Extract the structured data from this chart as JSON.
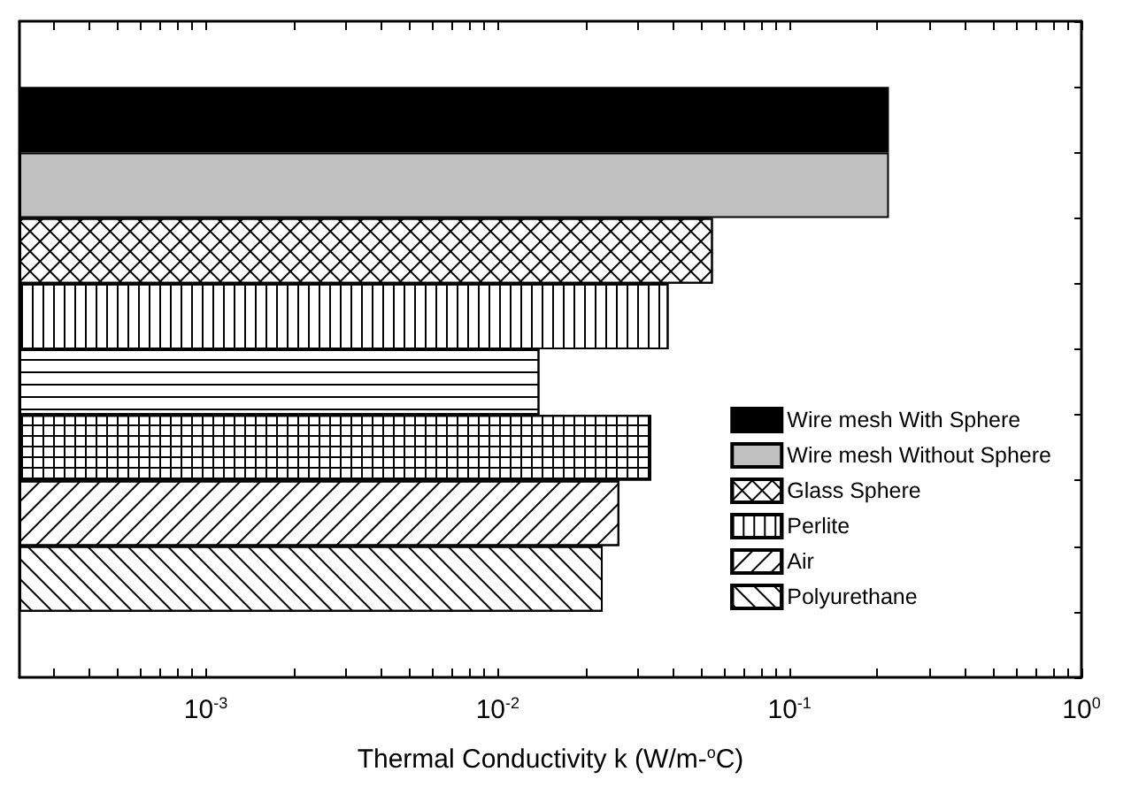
{
  "chart_data": {
    "type": "bar",
    "orientation": "horizontal",
    "xlabel": "Thermal Conductivity k (W/m-$^{o}$C)",
    "log": "x",
    "xlim": [
      0.00023,
      1
    ],
    "xticks": [
      {
        "value": 0.0003,
        "label": null
      },
      {
        "value": 0.0004,
        "label": null
      },
      {
        "value": 0.0005,
        "label": null
      },
      {
        "value": 0.0006,
        "label": null
      },
      {
        "value": 0.0007,
        "label": null
      },
      {
        "value": 0.0008,
        "label": null
      },
      {
        "value": 0.0009,
        "label": null
      },
      {
        "value": 0.001,
        "label": "10$^{-3}$"
      },
      {
        "value": 0.002,
        "label": null
      },
      {
        "value": 0.003,
        "label": null
      },
      {
        "value": 0.004,
        "label": null
      },
      {
        "value": 0.005,
        "label": null
      },
      {
        "value": 0.006,
        "label": null
      },
      {
        "value": 0.007,
        "label": null
      },
      {
        "value": 0.008,
        "label": null
      },
      {
        "value": 0.009,
        "label": null
      },
      {
        "value": 0.01,
        "label": "10$^{-2}$"
      },
      {
        "value": 0.02,
        "label": null
      },
      {
        "value": 0.03,
        "label": null
      },
      {
        "value": 0.04,
        "label": null
      },
      {
        "value": 0.05,
        "label": null
      },
      {
        "value": 0.06,
        "label": null
      },
      {
        "value": 0.07,
        "label": null
      },
      {
        "value": 0.08,
        "label": null
      },
      {
        "value": 0.09,
        "label": null
      },
      {
        "value": 0.1,
        "label": "10$^{-1}$"
      },
      {
        "value": 0.2,
        "label": null
      },
      {
        "value": 0.3,
        "label": null
      },
      {
        "value": 0.4,
        "label": null
      },
      {
        "value": 0.5,
        "label": null
      },
      {
        "value": 0.6,
        "label": null
      },
      {
        "value": 0.7,
        "label": null
      },
      {
        "value": 0.8,
        "label": null
      },
      {
        "value": 0.9,
        "label": null
      },
      {
        "value": 1,
        "label": "10$^{0}$"
      }
    ],
    "categories": [
      null,
      null,
      null,
      null,
      null,
      null,
      null,
      null,
      null,
      null
    ],
    "legend": "bottom right",
    "grid": false,
    "series": [
      {
        "name": "Wire mesh With Sphere",
        "color": "#000000",
        "values": [
          null,
          0.219,
          null,
          null,
          null,
          null,
          null,
          null,
          null,
          null
        ]
      },
      {
        "name": "Wire mesh Without Sphere",
        "color": "#c0c0c0",
        "values": [
          null,
          null,
          0.219,
          null,
          null,
          null,
          null,
          null,
          null,
          null
        ]
      },
      {
        "name": "Glass Sphere",
        "color": "#ffffff",
        "values": [
          null,
          null,
          null,
          0.0546,
          null,
          null,
          null,
          null,
          null,
          null
        ]
      },
      {
        "name": "Perlite",
        "color": "#ffffff",
        "values": [
          null,
          null,
          null,
          null,
          0.0385,
          null,
          null,
          null,
          null,
          null
        ]
      },
      {
        "color": "#ffffff",
        "values": [
          null,
          null,
          null,
          null,
          null,
          0.0139,
          null,
          null,
          null,
          null
        ]
      },
      {
        "color": "#ffffff",
        "values": [
          null,
          null,
          null,
          null,
          null,
          null,
          0.0336,
          null,
          null,
          null
        ]
      },
      {
        "name": "Air",
        "color": "#ffffff",
        "values": [
          null,
          null,
          null,
          null,
          null,
          null,
          null,
          0.0261,
          null,
          null
        ]
      },
      {
        "name": "Polyurethane",
        "color": "#ffffff",
        "values": [
          null,
          null,
          null,
          null,
          null,
          null,
          null,
          null,
          0.0229,
          null
        ]
      }
    ]
  }
}
